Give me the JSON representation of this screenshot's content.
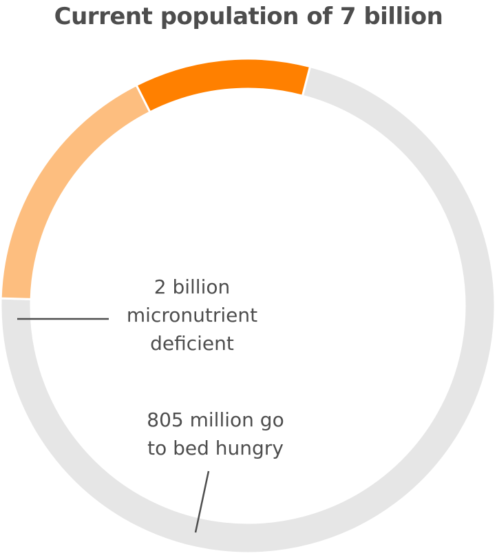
{
  "chart_data": {
    "type": "pie",
    "title": "Current population of 7 billion",
    "total": 7,
    "unit": "billion",
    "slices": [
      {
        "value": 5.0,
        "color": "#e6e6e6"
      },
      {
        "value": 1.195,
        "color": "#fdbe7f"
      },
      {
        "value": 0.805,
        "color": "#ff8000"
      }
    ],
    "annotations": [
      {
        "lines": [
          "2 billion",
          "micronutrient",
          "deficient"
        ]
      },
      {
        "lines": [
          "805 million go",
          "to bed hungry"
        ]
      }
    ]
  }
}
